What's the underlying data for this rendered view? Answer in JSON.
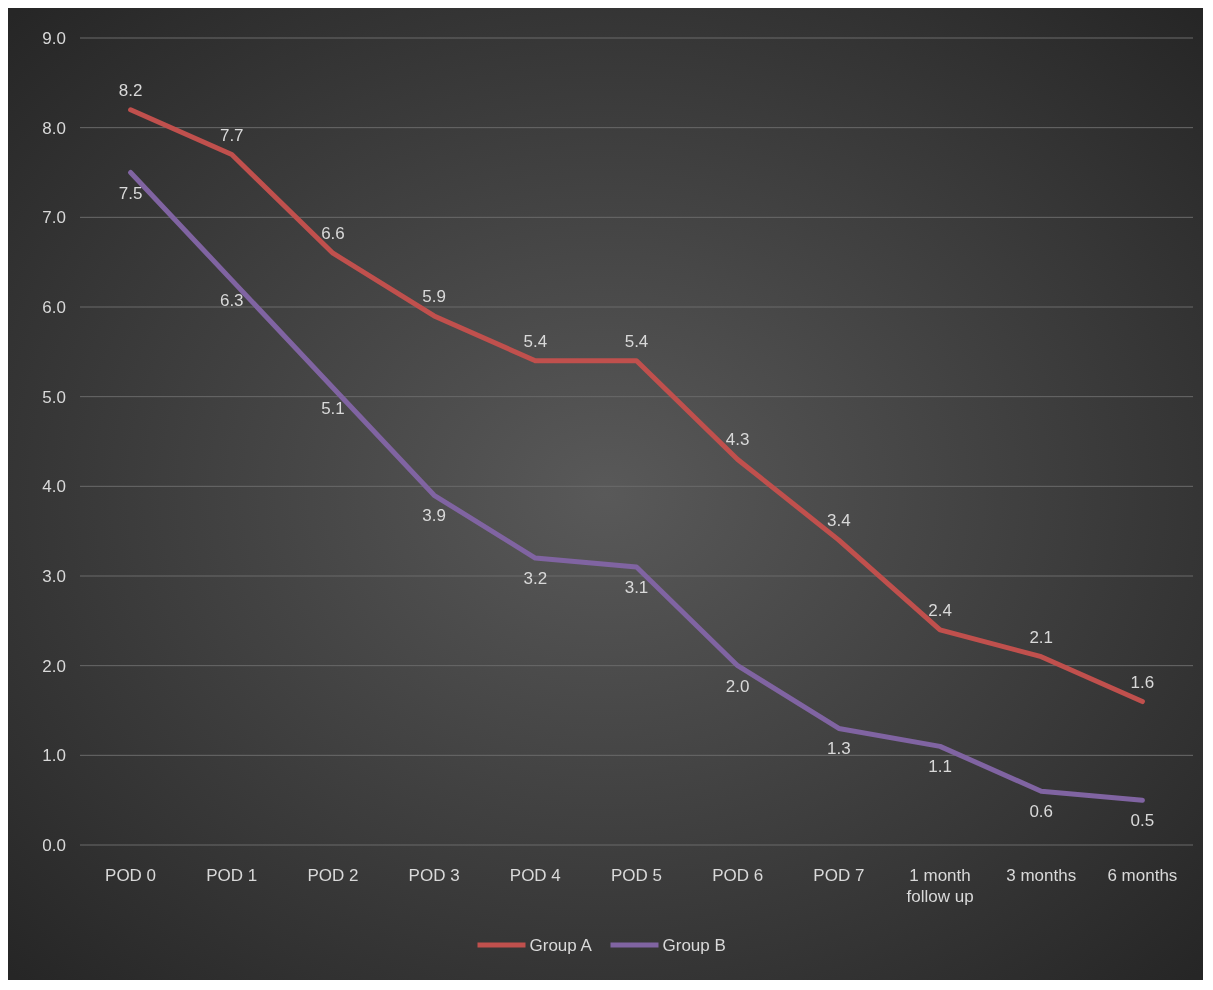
{
  "chart_data": {
    "type": "line",
    "categories": [
      "POD 0",
      "POD 1",
      "POD 2",
      "POD 3",
      "POD 4",
      "POD 5",
      "POD 6",
      "POD 7",
      "1 month follow up",
      "3 months",
      "6 months"
    ],
    "series": [
      {
        "name": "Group A",
        "color": "#c0504d",
        "values": [
          8.2,
          7.7,
          6.6,
          5.9,
          5.4,
          5.4,
          4.3,
          3.4,
          2.4,
          2.1,
          1.6
        ],
        "value_labels": [
          "8.2",
          "7.7",
          "6.6",
          "5.9",
          "5.4",
          "5.4",
          "4.3",
          "3.4",
          "2.4",
          "2.1",
          "1.6"
        ]
      },
      {
        "name": "Group B",
        "color": "#8064a2",
        "values": [
          7.5,
          6.3,
          5.1,
          3.9,
          3.2,
          3.1,
          2.0,
          1.3,
          1.1,
          0.6,
          0.5
        ],
        "value_labels": [
          "7.5",
          "6.3",
          "5.1",
          "3.9",
          "3.2",
          "3.1",
          "2.0",
          "1.3",
          "1.1",
          "0.6",
          "0.5"
        ]
      }
    ],
    "ylim": [
      0,
      9
    ],
    "yticks": [
      {
        "value": 0,
        "label": "0.0"
      },
      {
        "value": 1,
        "label": "1.0"
      },
      {
        "value": 2,
        "label": "2.0"
      },
      {
        "value": 3,
        "label": "3.0"
      },
      {
        "value": 4,
        "label": "4.0"
      },
      {
        "value": 5,
        "label": "5.0"
      },
      {
        "value": 6,
        "label": "6.0"
      },
      {
        "value": 7,
        "label": "7.0"
      },
      {
        "value": 8,
        "label": "8.0"
      },
      {
        "value": 9,
        "label": "9.0"
      }
    ],
    "grid": "y",
    "legend": "bottom",
    "marker": "none",
    "line_style": "solid"
  }
}
